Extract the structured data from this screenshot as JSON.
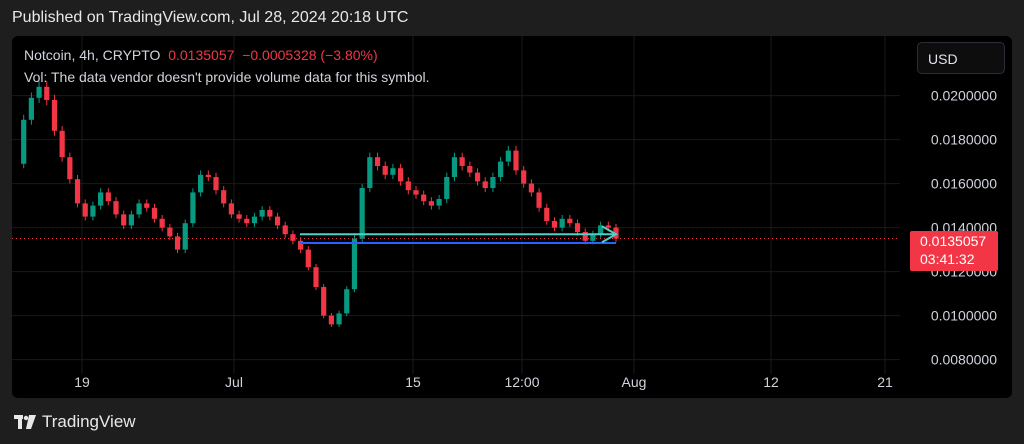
{
  "published": "Published on TradingView.com, Jul 28, 2024 20:18 UTC",
  "legend": {
    "symbol": "Notcoin, 4h, CRYPTO",
    "price": "0.0135057",
    "change": "−0.0005328 (−3.80%)",
    "volume_note": "Vol: The data vendor doesn't provide volume data for this symbol."
  },
  "currency_button": "USD",
  "price_tag": {
    "value": "0.0135057",
    "countdown": "03:41:32"
  },
  "footer_brand": "TradingView",
  "colors": {
    "up": "#089981",
    "down": "#f23645",
    "hline": "#2962ff",
    "arrow": "#4fd1c5",
    "background": "#000000"
  },
  "chart_data": {
    "type": "line",
    "title": "Notcoin, 4h, CRYPTO",
    "ylim": [
      0.0078,
      0.0218
    ],
    "y_ticks": [
      "0.0200000",
      "0.0180000",
      "0.0160000",
      "0.0140000",
      "0.0120000",
      "0.0100000",
      "0.0080000"
    ],
    "x_ticks": [
      "19",
      "Jul",
      "15",
      "12:00",
      "Aug",
      "12",
      "21"
    ],
    "last_price": 0.0135057,
    "series": [
      {
        "values": [
          0.0169,
          0.0189,
          0.0199,
          0.0204,
          0.0198,
          0.0184,
          0.0172,
          0.0162,
          0.0151,
          0.0145,
          0.015,
          0.0156,
          0.0152,
          0.0146,
          0.0141,
          0.0146,
          0.0151,
          0.0149,
          0.0144,
          0.014,
          0.0136,
          0.013,
          0.0142,
          0.0156,
          0.0164,
          0.0163,
          0.0157,
          0.0151,
          0.0146,
          0.0144,
          0.0142,
          0.0145,
          0.0148,
          0.0145,
          0.0141,
          0.0137,
          0.0134,
          0.013,
          0.0122,
          0.0113,
          0.01,
          0.0096,
          0.0101,
          0.0112,
          0.0135,
          0.0158,
          0.0172,
          0.0168,
          0.0164,
          0.0167,
          0.0161,
          0.0157,
          0.0155,
          0.0152,
          0.015,
          0.0153,
          0.0163,
          0.0172,
          0.0168,
          0.0165,
          0.0161,
          0.0158,
          0.0163,
          0.017,
          0.0175,
          0.0166,
          0.016,
          0.0156,
          0.0149,
          0.0143,
          0.014,
          0.0144,
          0.0142,
          0.0138,
          0.0134,
          0.0137,
          0.0141,
          0.014,
          0.0135
        ]
      }
    ],
    "annotations": [
      {
        "type": "horizontal_line",
        "y": 0.0133,
        "x_range": [
          "Jul 6",
          "Jul 28"
        ]
      },
      {
        "type": "arrow",
        "y": 0.0137,
        "x_range": [
          "Jul 6",
          "Jul 28"
        ]
      }
    ]
  }
}
